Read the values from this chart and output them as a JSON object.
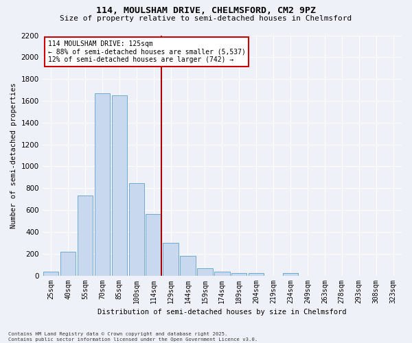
{
  "title_line1": "114, MOULSHAM DRIVE, CHELMSFORD, CM2 9PZ",
  "title_line2": "Size of property relative to semi-detached houses in Chelmsford",
  "xlabel": "Distribution of semi-detached houses by size in Chelmsford",
  "ylabel": "Number of semi-detached properties",
  "categories": [
    "25sqm",
    "40sqm",
    "55sqm",
    "70sqm",
    "85sqm",
    "100sqm",
    "114sqm",
    "129sqm",
    "144sqm",
    "159sqm",
    "174sqm",
    "189sqm",
    "204sqm",
    "219sqm",
    "234sqm",
    "249sqm",
    "263sqm",
    "278sqm",
    "293sqm",
    "308sqm",
    "323sqm"
  ],
  "bar_heights": [
    35,
    220,
    730,
    1670,
    1650,
    845,
    560,
    300,
    180,
    65,
    35,
    25,
    20,
    0,
    20,
    0,
    0,
    0,
    0,
    0,
    0
  ],
  "bar_color": "#c8d8ee",
  "bar_edge_color": "#6fa8d0",
  "marker_index": 6,
  "marker_color": "#aa0000",
  "ylim": [
    0,
    2200
  ],
  "yticks": [
    0,
    200,
    400,
    600,
    800,
    1000,
    1200,
    1400,
    1600,
    1800,
    2000,
    2200
  ],
  "annotation_title": "114 MOULSHAM DRIVE: 125sqm",
  "annotation_line1": "← 88% of semi-detached houses are smaller (5,537)",
  "annotation_line2": "12% of semi-detached houses are larger (742) →",
  "annotation_box_facecolor": "#ffffff",
  "annotation_box_edgecolor": "#cc0000",
  "background_color": "#eef2f8",
  "grid_color": "#ffffff",
  "footer_line1": "Contains HM Land Registry data © Crown copyright and database right 2025.",
  "footer_line2": "Contains public sector information licensed under the Open Government Licence v3.0."
}
